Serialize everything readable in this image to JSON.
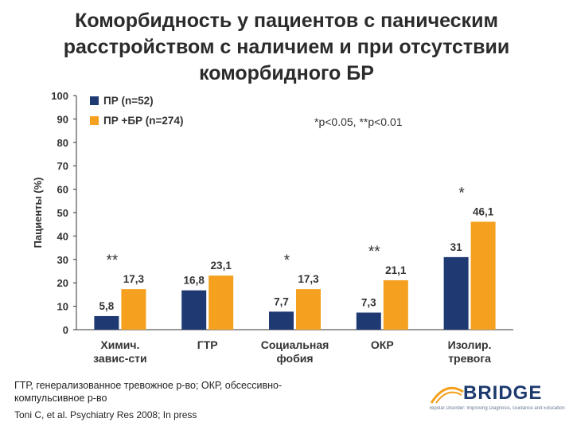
{
  "title_lines": [
    "Коморбидность у пациентов с паническим",
    "расстройством с наличием и при отсутствии",
    "коморбидного БР"
  ],
  "significance_note": "*p<0.05, **p<0.01",
  "footnote_lines": [
    "ГТР, генерализованное тревожное р-во; ОКР, обсессивно-",
    "компульсивное р-во"
  ],
  "citation": "Toni C, et al. Psychiatry Res 2008; In press",
  "logo": {
    "name": "BRIDGE",
    "tagline": "Bipolar Disorder: Improving Diagnosis, Guidance and Education"
  },
  "colors": {
    "series1": "#1f3a73",
    "series2": "#f5a01e",
    "axis": "#333333"
  },
  "chart_data": {
    "type": "bar",
    "ylabel": "Пациенты (%)",
    "ylim": [
      0,
      100
    ],
    "yticks": [
      0,
      10,
      20,
      30,
      40,
      50,
      60,
      70,
      80,
      90,
      100
    ],
    "legend_position": "top-left",
    "categories": [
      [
        "Химич.",
        "завис-сти"
      ],
      [
        "ГТР"
      ],
      [
        "Социальная",
        "фобия"
      ],
      [
        "ОКР"
      ],
      [
        "Изолир.",
        "тревога"
      ]
    ],
    "series": [
      {
        "name": "ПР (n=52)",
        "values": [
          5.8,
          16.8,
          7.7,
          7.3,
          31
        ],
        "labels": [
          "5,8",
          "16,8",
          "7,7",
          "7,3",
          "31"
        ]
      },
      {
        "name": "ПР +БР (n=274)",
        "values": [
          17.3,
          23.1,
          17.3,
          21.1,
          46.1
        ],
        "labels": [
          "17,3",
          "23,1",
          "17,3",
          "21,1",
          "46,1"
        ]
      }
    ],
    "significance": [
      "**",
      "",
      "*",
      "**",
      "*"
    ]
  }
}
